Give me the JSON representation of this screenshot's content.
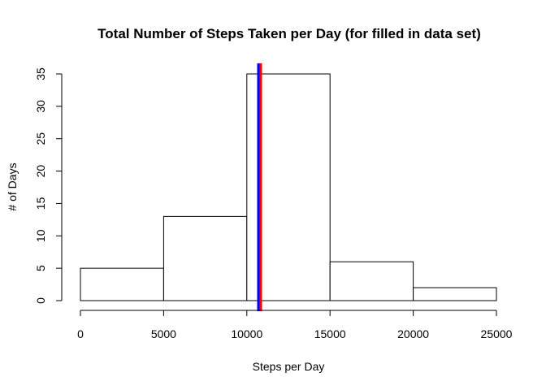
{
  "chart_data": {
    "type": "bar",
    "title": "Total Number of Steps Taken per Day (for filled in data set)",
    "xlabel": "Steps per Day",
    "ylabel": "# of Days",
    "bins": [
      {
        "from": 0,
        "to": 5000,
        "count": 5
      },
      {
        "from": 5000,
        "to": 10000,
        "count": 13
      },
      {
        "from": 10000,
        "to": 15000,
        "count": 35
      },
      {
        "from": 15000,
        "to": 20000,
        "count": 6
      },
      {
        "from": 20000,
        "to": 25000,
        "count": 2
      }
    ],
    "xlim": [
      0,
      25000
    ],
    "ylim": [
      0,
      35
    ],
    "x_ticks": [
      0,
      5000,
      10000,
      15000,
      20000,
      25000
    ],
    "x_tick_labels": [
      "0",
      "5000",
      "10000",
      "15000",
      "20000",
      "25000"
    ],
    "y_ticks": [
      0,
      5,
      10,
      15,
      20,
      25,
      30,
      35
    ],
    "y_tick_labels": [
      "0",
      "5",
      "10",
      "15",
      "20",
      "25",
      "30",
      "35"
    ],
    "grid": false,
    "bar_fill": "#ffffff",
    "bar_stroke": "#000000",
    "vertical_lines": [
      {
        "x": 10766,
        "color": "#ff0000"
      },
      {
        "x": 10766,
        "color": "#0000ff"
      }
    ]
  }
}
